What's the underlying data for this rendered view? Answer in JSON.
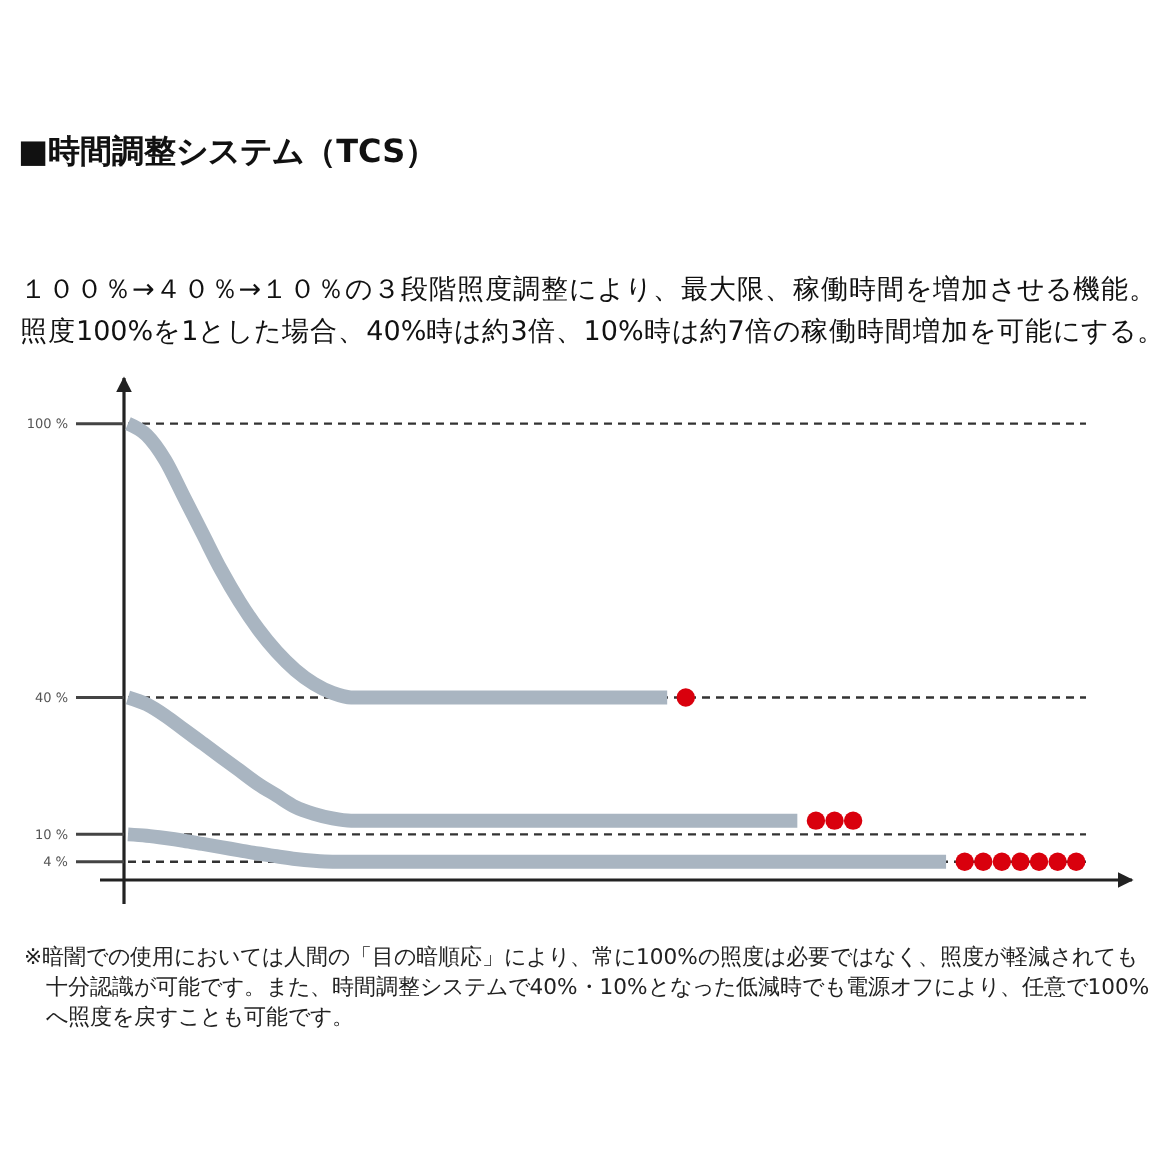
{
  "chart_data": {
    "type": "line",
    "title": "■時間調整システム（TCS）",
    "subtitle": "１００％→４０％→１０％の３段階照度調整により、最大限、稼働時間を増加させる機能。照度100%を1とした場合、40%時は約3倍、10%時は約7倍の稼働時間増加を可能にする。",
    "annotations": [
      "※暗闇での使用においては人間の「目の暗順応」により、常に100%の照度は必要ではなく、照度が軽減されても十分認識が可能です。また、時間調整システムで40%・10%となった低減時でも電源オフにより、任意で100%へ照度を戻すことも可能です。"
    ],
    "categories": [
      null,
      null,
      null,
      null,
      null,
      null,
      null,
      null,
      null,
      null,
      null,
      null,
      null,
      null,
      null,
      null,
      null,
      null,
      null,
      null,
      null,
      null,
      null,
      null,
      null,
      null,
      null,
      null,
      null,
      null,
      null,
      null,
      null,
      null,
      null,
      null,
      null,
      null,
      null,
      null,
      null,
      null,
      null,
      null,
      null,
      null,
      null,
      null,
      null,
      null,
      null,
      null,
      null,
      null,
      null
    ],
    "series": [
      {
        "color": "#a9b5c1",
        "values": [
          100,
          97.5,
          92,
          84,
          76,
          68,
          61,
          55,
          50,
          46,
          43,
          41,
          40,
          40,
          40,
          40,
          40,
          40,
          40,
          40,
          40,
          40,
          40,
          40,
          40,
          40,
          40,
          40,
          40,
          40,
          null,
          null,
          null,
          null,
          null,
          null,
          null,
          null,
          null,
          null,
          null,
          null,
          null,
          null,
          null,
          null,
          null,
          null,
          null,
          null,
          null,
          null,
          null,
          null,
          null
        ]
      },
      {
        "color": "#a9b5c1",
        "values": [
          40,
          38.5,
          36,
          33,
          30,
          27,
          24,
          21,
          18.5,
          16,
          14.5,
          13.5,
          13,
          13,
          13,
          13,
          13,
          13,
          13,
          13,
          13,
          13,
          13,
          13,
          13,
          13,
          13,
          13,
          13,
          13,
          13,
          13,
          13,
          13,
          13,
          13,
          13,
          null,
          null,
          null,
          null,
          null,
          null,
          null,
          null,
          null,
          null,
          null,
          null,
          null,
          null,
          null,
          null,
          null,
          null
        ]
      },
      {
        "color": "#a9b5c1",
        "values": [
          10,
          9.7,
          9.2,
          8.6,
          7.9,
          7.2,
          6.5,
          5.8,
          5.2,
          4.6,
          4.2,
          4,
          4,
          4,
          4,
          4,
          4,
          4,
          4,
          4,
          4,
          4,
          4,
          4,
          4,
          4,
          4,
          4,
          4,
          4,
          4,
          4,
          4,
          4,
          4,
          4,
          4,
          4,
          4,
          4,
          4,
          4,
          4,
          4,
          4,
          null,
          null,
          null,
          null,
          null,
          null,
          null,
          null,
          null,
          null
        ]
      },
      {
        "type": "scatter",
        "color": "#d9000d",
        "marker": "circle",
        "values": [
          null,
          null,
          null,
          null,
          null,
          null,
          null,
          null,
          null,
          null,
          null,
          null,
          null,
          null,
          null,
          null,
          null,
          null,
          null,
          null,
          null,
          null,
          null,
          null,
          null,
          null,
          null,
          null,
          null,
          null,
          40,
          null,
          null,
          null,
          null,
          null,
          null,
          13,
          13,
          13,
          null,
          null,
          null,
          null,
          null,
          4,
          4,
          4,
          4,
          4,
          4,
          4,
          null,
          null,
          null
        ]
      }
    ],
    "line_style": "solid",
    "ylim": [
      0,
      110
    ],
    "yticks": [
      {
        "value": 100,
        "label": "100 %"
      },
      {
        "value": 40,
        "label": "40 %"
      },
      {
        "value": 10,
        "label": "10 %"
      },
      {
        "value": 4,
        "label": "4 %"
      }
    ],
    "tick_labels": "y",
    "grid": "y"
  }
}
